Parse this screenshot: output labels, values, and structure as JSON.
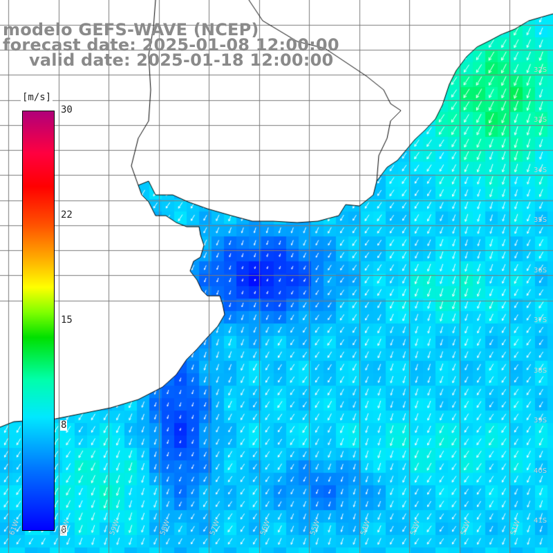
{
  "title": {
    "model": "modelo GEFS-WAVE (NCEP)",
    "forecast": "forecast date: 2025-01-08 12:00:00",
    "valid": "valid date: 2025-01-18 12:00:00"
  },
  "colorbar": {
    "unit": "[m/s]",
    "ticks": [
      "30",
      "22",
      "15",
      "8",
      "0"
    ],
    "colors": [
      "#0000ff",
      "#0070ff",
      "#00e8ff",
      "#00ffaa",
      "#00e000",
      "#80ff00",
      "#ffff00",
      "#ffaa00",
      "#ff5000",
      "#ff0000",
      "#b0007a"
    ]
  },
  "grid": {
    "lat_labels": [
      "32S",
      "33S",
      "34S",
      "35S",
      "36S",
      "37S",
      "38S",
      "39S",
      "40S",
      "41S"
    ],
    "lon_labels": [
      "61W",
      "60W",
      "59W",
      "58W",
      "57W",
      "56W",
      "55W",
      "54W",
      "53W",
      "52W",
      "51W"
    ]
  },
  "map": {
    "variable": "wind speed and direction (10 m)",
    "land_color": "#ffffff",
    "coastline_color": "#000000",
    "arrow_color": "#ffffff"
  }
}
